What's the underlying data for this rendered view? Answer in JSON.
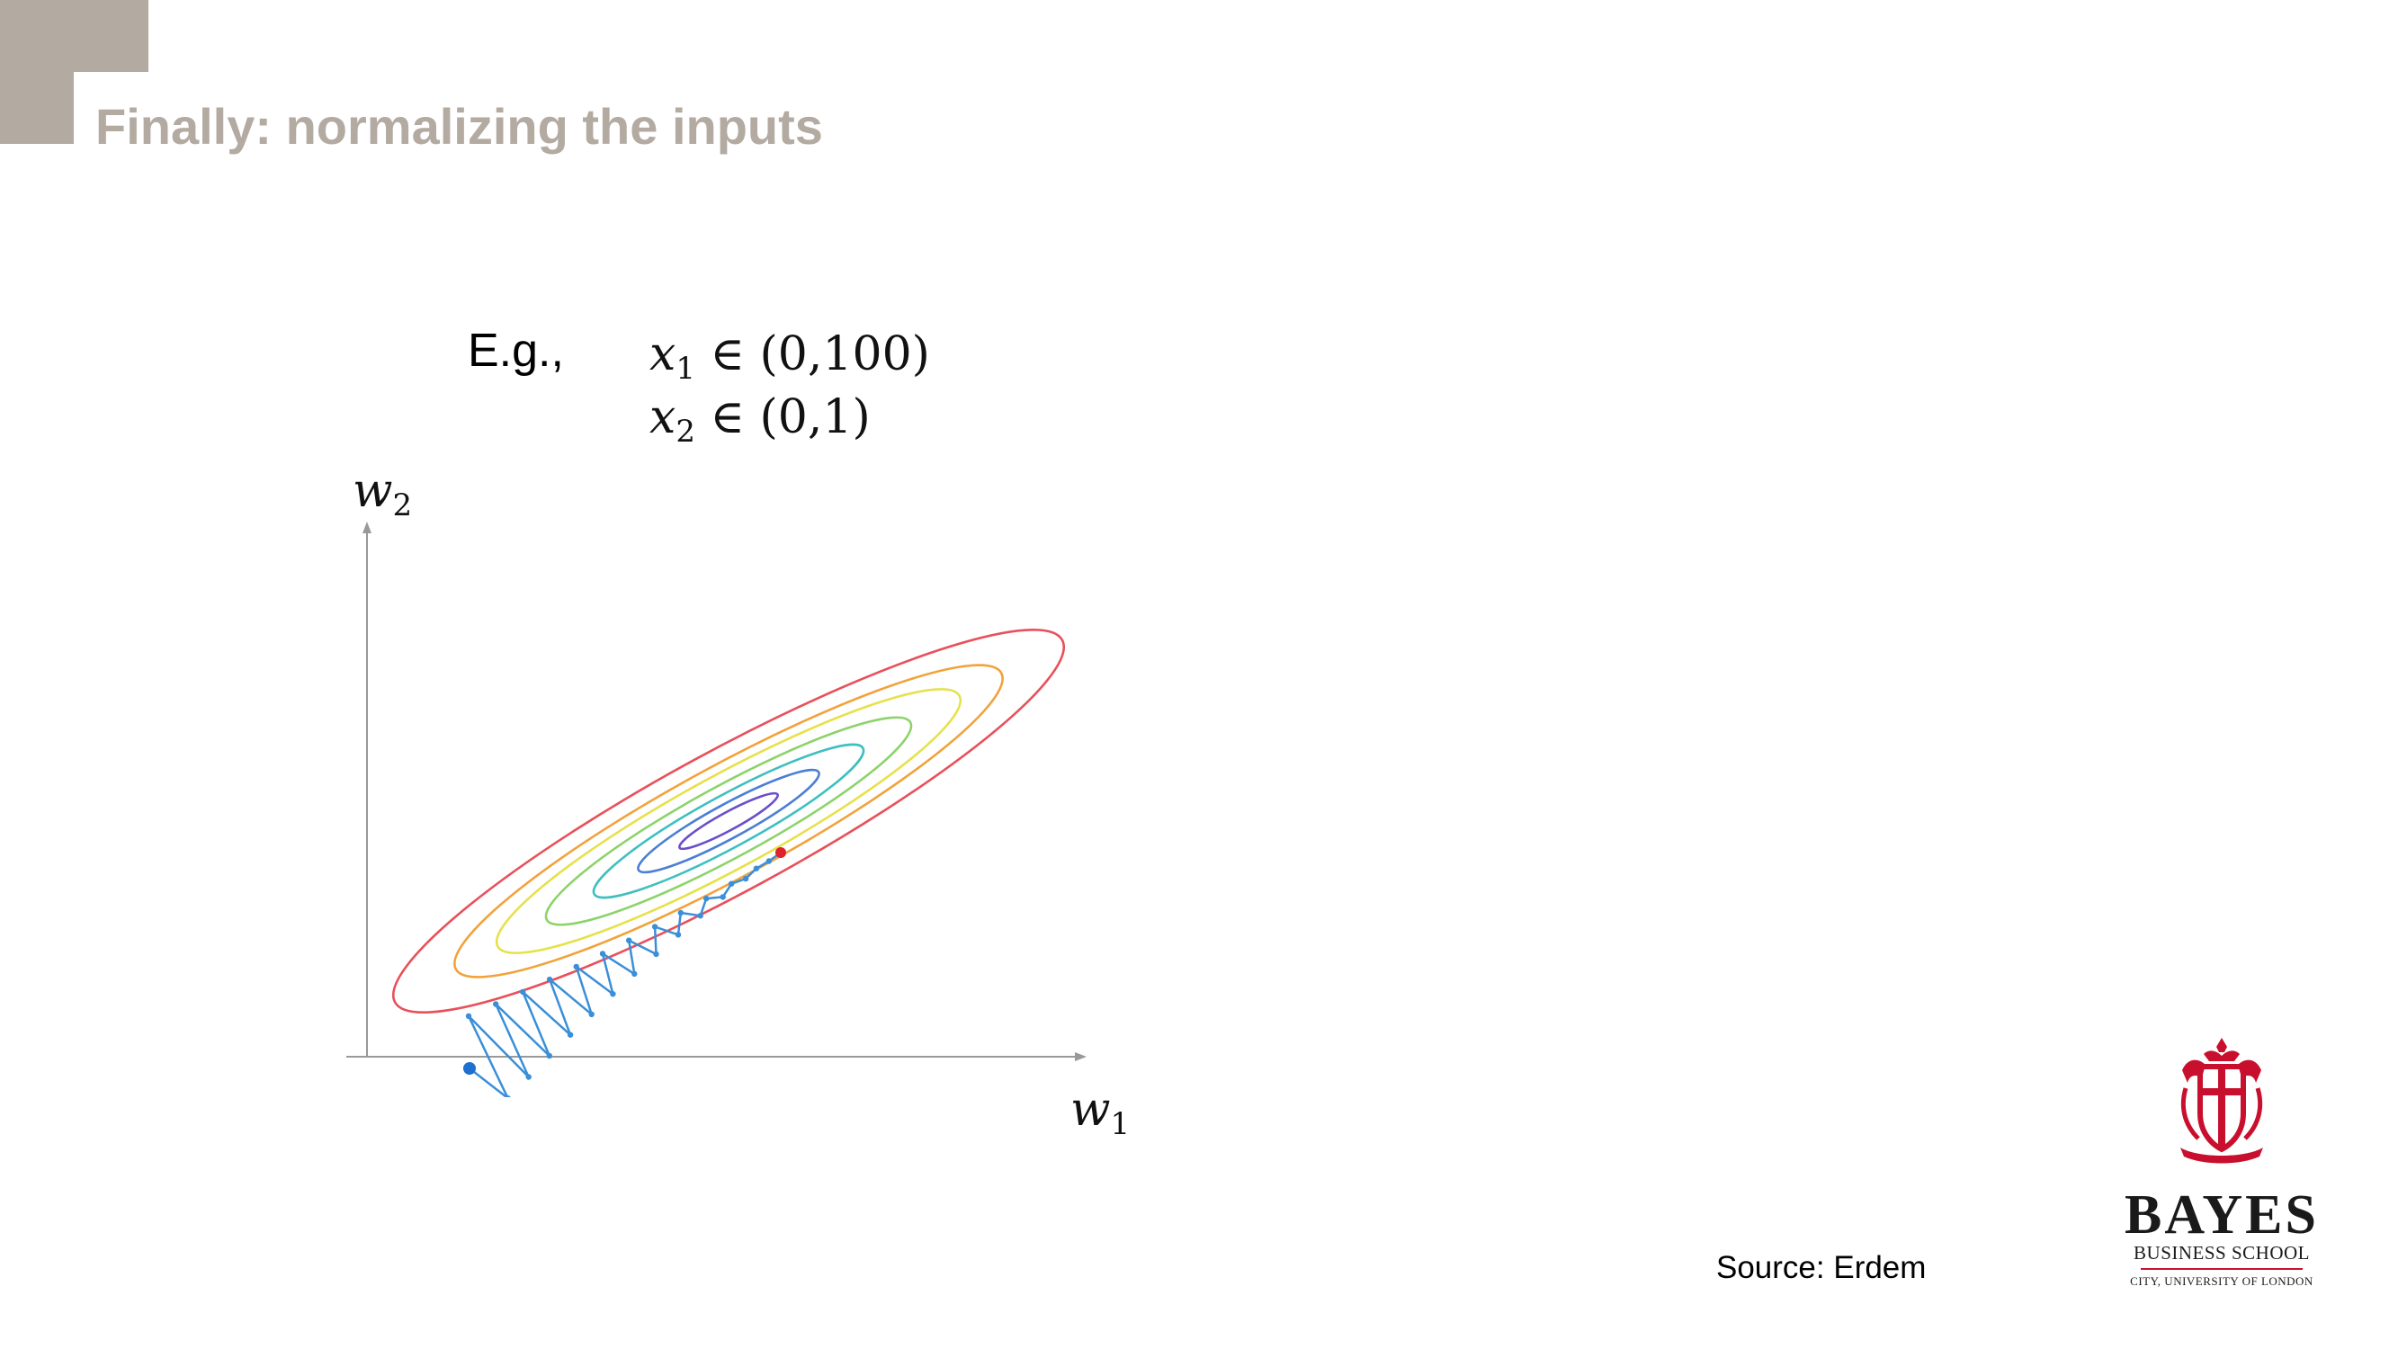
{
  "slide": {
    "title": "Finally: normalizing the inputs",
    "example_label": "E.g.,",
    "source": "Source: Erdem",
    "accent_color": "#b3aaa2"
  },
  "equations": [
    {
      "var": "x",
      "sub": "1",
      "rest": " ∈ (0,100)"
    },
    {
      "var": "x",
      "sub": "2",
      "rest": " ∈ (0,1)"
    }
  ],
  "diagram": {
    "y_axis": {
      "var": "w",
      "sub": "2"
    },
    "x_axis": {
      "var": "w",
      "sub": "1"
    },
    "contour_colors": [
      "#e8505b",
      "#f2a23a",
      "#e6e14a",
      "#8cd36a",
      "#3fbfc0",
      "#4a7fd4",
      "#6a4fc8"
    ],
    "path_color": "#3a8fd8",
    "start_point_color": "#1f6fd0",
    "minimum_point_color": "#e0202a"
  },
  "logo": {
    "name": "BAYES",
    "school": "BUSINESS SCHOOL",
    "university": "CITY, UNIVERSITY OF LONDON",
    "color": "#c8102e"
  }
}
